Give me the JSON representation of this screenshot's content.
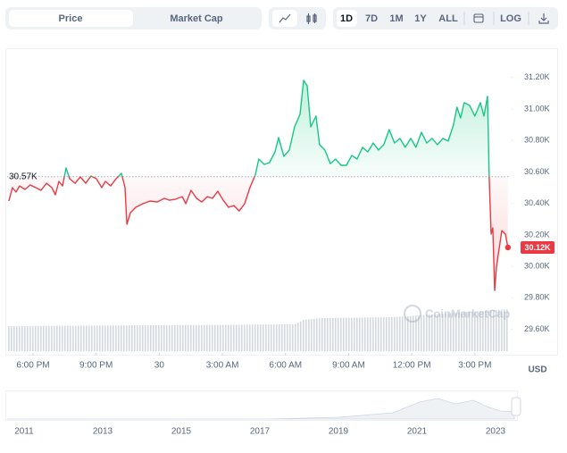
{
  "tabs": [
    "Price",
    "Market Cap"
  ],
  "ranges": [
    "1D",
    "7D",
    "1M",
    "1Y",
    "ALL"
  ],
  "log_label": "LOG",
  "unit_label": "USD",
  "watermark": "CoinMarketCap",
  "chart_data": {
    "type": "line",
    "x": [
      -1.15,
      -0.98,
      -0.81,
      -0.64,
      -0.38,
      -0.13,
      0.13,
      0.38,
      0.64,
      0.89,
      1.06,
      1.23,
      1.4,
      1.57,
      1.74,
      2.0,
      2.25,
      2.5,
      2.76,
      3.01,
      3.27,
      3.44,
      3.69,
      3.95,
      4.2,
      4.37,
      4.46,
      4.63,
      4.88,
      5.22,
      5.56,
      5.9,
      6.24,
      6.49,
      6.75,
      7.09,
      7.26,
      7.51,
      7.77,
      8.02,
      8.28,
      8.53,
      8.78,
      9.04,
      9.29,
      9.55,
      9.8,
      10.06,
      10.31,
      10.57,
      10.73,
      10.99,
      11.24,
      11.5,
      11.67,
      11.92,
      12.18,
      12.43,
      12.69,
      12.86,
      13.03,
      13.2,
      13.45,
      13.62,
      13.87,
      14.13,
      14.38,
      14.64,
      14.89,
      15.15,
      15.4,
      15.66,
      15.91,
      16.17,
      16.42,
      16.67,
      16.93,
      17.18,
      17.44,
      17.69,
      17.95,
      18.2,
      18.46,
      18.71,
      18.97,
      19.22,
      19.48,
      19.73,
      19.98,
      20.15,
      20.32,
      20.49,
      20.75,
      21.0,
      21.26,
      21.43,
      21.6,
      21.68,
      21.77,
      21.85,
      21.94,
      22.02,
      22.11,
      22.28,
      22.45,
      22.57
    ],
    "values": [
      30415,
      30500,
      30472,
      30511,
      30489,
      30517,
      30500,
      30483,
      30528,
      30500,
      30455,
      30540,
      30511,
      30625,
      30557,
      30528,
      30568,
      30528,
      30574,
      30557,
      30500,
      30540,
      30511,
      30557,
      30591,
      30500,
      30267,
      30341,
      30375,
      30398,
      30415,
      30409,
      30432,
      30420,
      30426,
      30443,
      30398,
      30483,
      30432,
      30409,
      30443,
      30432,
      30477,
      30420,
      30375,
      30386,
      30352,
      30398,
      30500,
      30585,
      30682,
      30648,
      30659,
      30727,
      30818,
      30699,
      30739,
      30886,
      30966,
      31182,
      31148,
      30886,
      30955,
      30773,
      30739,
      30653,
      30682,
      30642,
      30642,
      30705,
      30682,
      30756,
      30727,
      30784,
      30739,
      30773,
      30869,
      30784,
      30813,
      30756,
      30813,
      30756,
      30852,
      30784,
      30813,
      30773,
      30813,
      30796,
      30898,
      31011,
      30943,
      31040,
      31023,
      30955,
      31040,
      30955,
      31080,
      30580,
      30205,
      30244,
      29847,
      29989,
      30074,
      30227,
      30205,
      30120
    ],
    "color_above": "#16c784",
    "color_below": "#ea3943",
    "baseline": {
      "value": 30570,
      "label": "30.57K"
    },
    "current_price": {
      "value": 30120,
      "label": "30.12K"
    },
    "xlim": [
      -1.23,
      22.62
    ],
    "xticks": [
      {
        "value": 0,
        "label": "6:00 PM"
      },
      {
        "value": 3,
        "label": "9:00 PM"
      },
      {
        "value": 6,
        "label": "30"
      },
      {
        "value": 9,
        "label": "3:00 AM"
      },
      {
        "value": 12,
        "label": "6:00 AM"
      },
      {
        "value": 15,
        "label": "9:00 AM"
      },
      {
        "value": 18,
        "label": "12:00 PM"
      },
      {
        "value": 21,
        "label": "3:00 PM"
      }
    ],
    "ylim": [
      29450,
      31380
    ],
    "yticks": [
      {
        "value": 29600,
        "label": "29.60K"
      },
      {
        "value": 29800,
        "label": "29.80K"
      },
      {
        "value": 30000,
        "label": "30.00K"
      },
      {
        "value": 30200,
        "label": "30.20K"
      },
      {
        "value": 30400,
        "label": "30.40K"
      },
      {
        "value": 30600,
        "label": "30.60K"
      },
      {
        "value": 30800,
        "label": "30.80K"
      },
      {
        "value": 31000,
        "label": "31.00K"
      },
      {
        "value": 31200,
        "label": "31.20K"
      }
    ],
    "grid": false
  },
  "navigator": {
    "years": [
      "2011",
      "2013",
      "2015",
      "2017",
      "2019",
      "2021",
      "2023"
    ]
  }
}
